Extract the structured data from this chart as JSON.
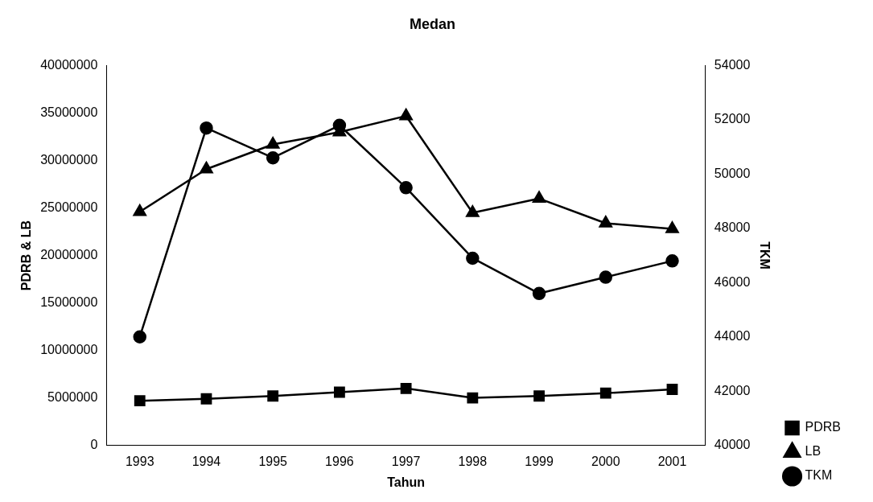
{
  "chart_data": {
    "type": "line",
    "title": "Medan",
    "xlabel": "Tahun",
    "ylabel": "PDRB & LB",
    "y2label": "TKM",
    "categories": [
      "1993",
      "1994",
      "1995",
      "1996",
      "1997",
      "1998",
      "1999",
      "2000",
      "2001"
    ],
    "series": [
      {
        "name": "PDRB",
        "color": "#000000",
        "marker": "square",
        "values": [
          4700000,
          4900000,
          5200000,
          5600000,
          6000000,
          5000000,
          5200000,
          5500000,
          5900000
        ]
      },
      {
        "name": "LB",
        "color": "#000000",
        "marker": "triangle",
        "values": [
          24600000,
          29100000,
          31700000,
          33000000,
          34700000,
          24500000,
          26000000,
          23400000,
          22800000
        ]
      },
      {
        "name": "TKM",
        "color": "#000000",
        "marker": "circle",
        "axis": "y2",
        "values": [
          44000,
          51700,
          50600,
          51800,
          49500,
          46900,
          45600,
          46200,
          46800
        ]
      }
    ],
    "ylim": [
      0,
      40000000
    ],
    "yticks": [
      0,
      5000000,
      10000000,
      15000000,
      20000000,
      25000000,
      30000000,
      35000000,
      40000000
    ],
    "y2lim": [
      40000,
      54000
    ],
    "y2ticks": [
      40000,
      42000,
      44000,
      46000,
      48000,
      50000,
      52000,
      54000
    ],
    "grid": false,
    "legend": "right"
  }
}
